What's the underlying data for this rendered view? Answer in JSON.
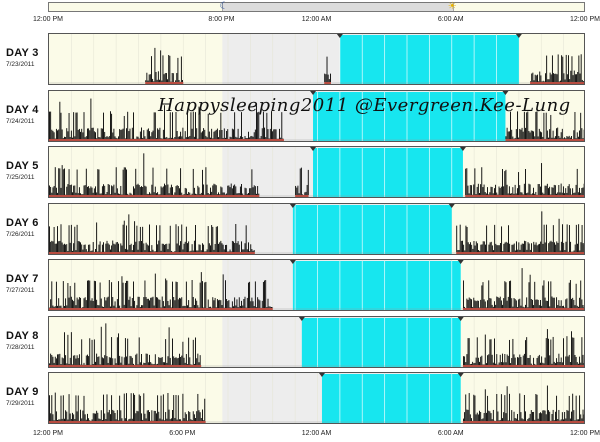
{
  "chart_data": {
    "type": "actogram",
    "x_tick_labels": [
      "12:00 PM",
      "8:00 PM",
      "12:00 AM",
      "6:00 AM",
      "12:00 PM"
    ],
    "x_bottom_tick_labels": [
      "12:00 PM",
      "6:00 PM",
      "12:00 AM",
      "6:00 AM",
      "12:00 PM"
    ],
    "x_domain_hours_from_noon": [
      0,
      24
    ],
    "night_span_hours_from_noon": [
      7.75,
      18.0
    ],
    "moon_hour": 7.75,
    "sun_hour": 18.0,
    "days": [
      {
        "name": "DAY 3",
        "date": "7/23/2011",
        "sleep_start": 13.0,
        "sleep_end": 21.0,
        "active_ranges": [
          [
            4.3,
            6.0
          ],
          [
            12.3,
            12.6
          ],
          [
            21.5,
            24.0
          ]
        ]
      },
      {
        "name": "DAY 4",
        "date": "7/24/2011",
        "sleep_start": 11.8,
        "sleep_end": 20.4,
        "active_ranges": [
          [
            0.0,
            10.5
          ],
          [
            20.4,
            24.0
          ]
        ]
      },
      {
        "name": "DAY 5",
        "date": "7/25/2011",
        "sleep_start": 11.8,
        "sleep_end": 18.5,
        "active_ranges": [
          [
            0.0,
            9.4
          ],
          [
            11.0,
            11.6
          ],
          [
            18.6,
            24.0
          ]
        ]
      },
      {
        "name": "DAY 6",
        "date": "7/26/2011",
        "sleep_start": 10.9,
        "sleep_end": 18.0,
        "active_ranges": [
          [
            0.0,
            9.2
          ],
          [
            18.2,
            24.0
          ]
        ]
      },
      {
        "name": "DAY 7",
        "date": "7/27/2011",
        "sleep_start": 10.9,
        "sleep_end": 18.4,
        "active_ranges": [
          [
            0.0,
            10.0
          ],
          [
            18.5,
            24.0
          ]
        ]
      },
      {
        "name": "DAY 8",
        "date": "7/28/2011",
        "sleep_start": 11.3,
        "sleep_end": 18.4,
        "active_ranges": [
          [
            0.0,
            6.8
          ],
          [
            18.5,
            24.0
          ]
        ]
      },
      {
        "name": "DAY 9",
        "date": "7/29/2011",
        "sleep_start": 12.2,
        "sleep_end": 18.4,
        "active_ranges": [
          [
            0.0,
            7.0
          ],
          [
            18.5,
            24.0
          ]
        ]
      }
    ]
  },
  "watermark": "Happysleeping2011 @Evergreen.Kee-Lung",
  "colors": {
    "sleep_band": "#17e6ef",
    "night_shade": "#ededed",
    "plot_bg": "#fbfbe8",
    "activity": "#000000",
    "baseline": "#c0392b"
  },
  "icons": {
    "moon": "moon-icon",
    "sun": "sun-icon"
  }
}
